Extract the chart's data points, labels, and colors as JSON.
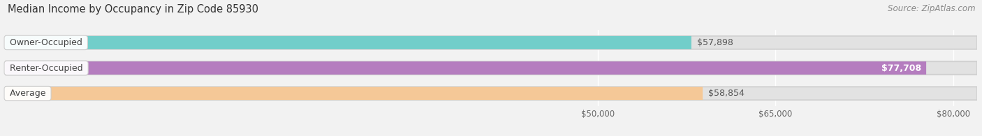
{
  "title": "Median Income by Occupancy in Zip Code 85930",
  "source": "Source: ZipAtlas.com",
  "categories": [
    "Owner-Occupied",
    "Renter-Occupied",
    "Average"
  ],
  "values": [
    57898,
    77708,
    58854
  ],
  "bar_colors": [
    "#72ceca",
    "#b57dbf",
    "#f5c897"
  ],
  "xlim": [
    0,
    82000
  ],
  "xmin": 0,
  "xmax": 82000,
  "xticks": [
    50000,
    65000,
    80000
  ],
  "xtick_labels": [
    "$50,000",
    "$65,000",
    "$80,000"
  ],
  "value_labels": [
    "$57,898",
    "$77,708",
    "$58,854"
  ],
  "background_color": "#f2f2f2",
  "bar_bg_color": "#e2e2e2",
  "bar_bg_border": "#d0d0d0",
  "title_fontsize": 10.5,
  "source_fontsize": 8.5,
  "label_fontsize": 9,
  "value_fontsize": 9,
  "tick_fontsize": 8.5,
  "bar_height": 0.52,
  "fig_width": 14.06,
  "fig_height": 1.96,
  "dpi": 100
}
